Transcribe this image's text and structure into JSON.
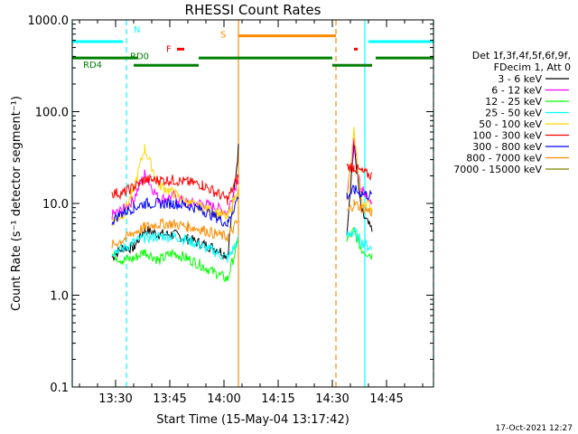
{
  "chart_data": {
    "type": "line",
    "title": "RHESSI Count Rates",
    "xlabel": "Start Time (15-May-04 13:17:42)",
    "ylabel": "Count Rate (s⁻¹ detector segment⁻¹)",
    "y_scale": "log",
    "ylim": [
      0.1,
      1000.0
    ],
    "xlim": [
      "13:18",
      "14:58"
    ],
    "x_ticks": [
      "13:30",
      "13:45",
      "14:00",
      "14:15",
      "14:30",
      "14:45"
    ],
    "y_ticks": [
      "0.1",
      "1.0",
      "10.0",
      "100.0",
      "1000.0"
    ],
    "grid": false,
    "legend_position": "right",
    "legend_header": [
      "Det 1f,3f,4f,5f,6f,9f,",
      "FDecim 1, Att 0"
    ],
    "series": [
      {
        "name": "3 - 6 keV",
        "color": "#000000",
        "x": [
          "13:29",
          "13:32",
          "13:35",
          "13:38",
          "13:42",
          "13:46",
          "13:50",
          "13:54",
          "13:58",
          "14:01",
          "14:04",
          "14:34",
          "14:36",
          "14:38",
          "14:41"
        ],
        "values": [
          2.6,
          3.3,
          3.3,
          5.2,
          4.6,
          4.6,
          4.1,
          3.6,
          3.2,
          2.7,
          40,
          5,
          45,
          8,
          5
        ]
      },
      {
        "name": "6 - 12 keV",
        "color": "#ff00ff",
        "x": [
          "13:29",
          "13:32",
          "13:35",
          "13:38",
          "13:42",
          "13:46",
          "13:50",
          "13:54",
          "13:58",
          "14:01",
          "14:04",
          "14:34",
          "14:36",
          "14:38",
          "14:41"
        ],
        "values": [
          7.5,
          8.5,
          11,
          21,
          11,
          12,
          10,
          10,
          9,
          8,
          20,
          12,
          45,
          14,
          11
        ]
      },
      {
        "name": "12 - 25 keV",
        "color": "#00ff00",
        "x": [
          "13:29",
          "13:32",
          "13:35",
          "13:38",
          "13:42",
          "13:46",
          "13:50",
          "13:54",
          "13:58",
          "14:01",
          "14:04",
          "14:34",
          "14:36",
          "14:38",
          "14:41"
        ],
        "values": [
          2.8,
          2.4,
          2.5,
          3.0,
          2.4,
          2.9,
          2.5,
          2.1,
          1.7,
          1.5,
          4.0,
          4.0,
          5.0,
          3.2,
          2.7
        ]
      },
      {
        "name": "25 - 50 keV",
        "color": "#00ffff",
        "x": [
          "13:29",
          "13:32",
          "13:35",
          "13:38",
          "13:42",
          "13:46",
          "13:50",
          "13:54",
          "13:58",
          "14:01",
          "14:04",
          "14:34",
          "14:36",
          "14:38",
          "14:41"
        ],
        "values": [
          3.0,
          3.2,
          3.8,
          4.2,
          4.4,
          4.4,
          4.0,
          3.4,
          2.9,
          2.5,
          4.0,
          4.5,
          5.0,
          3.8,
          3.2
        ]
      },
      {
        "name": "50 - 100 keV",
        "color": "#ffd700",
        "x": [
          "13:29",
          "13:32",
          "13:35",
          "13:38",
          "13:42",
          "13:46",
          "13:50",
          "13:54",
          "13:58",
          "14:01",
          "14:04",
          "14:34",
          "14:36",
          "14:38",
          "14:41"
        ],
        "values": [
          6.5,
          7.5,
          14,
          40,
          16,
          13,
          10,
          9,
          8,
          7,
          15,
          10,
          60,
          11,
          9
        ]
      },
      {
        "name": "100 - 300 keV",
        "color": "#ff0000",
        "x": [
          "13:29",
          "13:32",
          "13:35",
          "13:38",
          "13:42",
          "13:46",
          "13:50",
          "13:54",
          "13:58",
          "14:01",
          "14:04",
          "14:34",
          "14:36",
          "14:38",
          "14:41"
        ],
        "values": [
          13,
          13,
          15,
          18,
          18,
          18,
          17,
          16,
          13,
          11,
          20,
          25,
          25,
          22,
          20
        ]
      },
      {
        "name": "300 - 800 keV",
        "color": "#0000ff",
        "x": [
          "13:29",
          "13:32",
          "13:35",
          "13:38",
          "13:42",
          "13:46",
          "13:50",
          "13:54",
          "13:58",
          "14:01",
          "14:04",
          "14:34",
          "14:36",
          "14:38",
          "14:41"
        ],
        "values": [
          6.5,
          8,
          9,
          10,
          10,
          10,
          9.5,
          8.5,
          7,
          6,
          12,
          12,
          14,
          13,
          12
        ]
      },
      {
        "name": "800 - 7000 keV",
        "color": "#ff8c00",
        "x": [
          "13:29",
          "13:32",
          "13:35",
          "13:38",
          "13:42",
          "13:46",
          "13:50",
          "13:54",
          "13:58",
          "14:01",
          "14:04",
          "14:34",
          "14:36",
          "14:38",
          "14:41"
        ],
        "values": [
          3.5,
          4.0,
          4.8,
          5.5,
          6.0,
          6.0,
          5.6,
          5.2,
          4.6,
          4.3,
          6.5,
          8,
          10,
          9,
          8
        ]
      },
      {
        "name": "7000 - 15000 keV",
        "color": "#808000",
        "x": [
          "13:29",
          "13:32",
          "13:35",
          "13:38",
          "13:42",
          "13:46",
          "13:50",
          "13:54",
          "13:58",
          "14:01",
          "14:04",
          "14:34",
          "14:36",
          "14:38",
          "14:41"
        ],
        "values": [
          null,
          null,
          null,
          null,
          null,
          null,
          null,
          null,
          null,
          null,
          null,
          null,
          null,
          null,
          null
        ]
      }
    ],
    "vertical_lines": [
      {
        "x": "13:18",
        "color": "#00ffff",
        "style": "solid"
      },
      {
        "x": "13:33",
        "color": "#00ffff",
        "style": "dashed"
      },
      {
        "x": "14:04",
        "color": "#ff8c00",
        "style": "solid"
      },
      {
        "x": "14:31",
        "color": "#ff8c00",
        "style": "dashed"
      },
      {
        "x": "14:39",
        "color": "#00ffff",
        "style": "solid"
      },
      {
        "x": "14:58",
        "color": "#00ffff",
        "style": "dashed"
      }
    ],
    "flag_bars": [
      {
        "label": "N",
        "color": "#00ffff",
        "segments": [
          [
            "13:18",
            "13:32"
          ],
          [
            "14:40",
            "14:58"
          ]
        ],
        "level": 580
      },
      {
        "label": "S",
        "color": "#ff8c00",
        "segments": [
          [
            "14:04",
            "14:31"
          ]
        ],
        "level": 670
      },
      {
        "label": "F",
        "color": "#ff0000",
        "segments": [
          [
            "13:47",
            "13:49"
          ],
          [
            "14:36",
            "14:37"
          ]
        ],
        "level": 480
      },
      {
        "label": "RD0",
        "color": "#008000",
        "segments": [
          [
            "13:18",
            "13:36"
          ],
          [
            "13:53",
            "14:30"
          ],
          [
            "14:42",
            "14:58"
          ]
        ],
        "level": 385
      },
      {
        "label": "RD4",
        "color": "#008000",
        "segments": [
          [
            "13:35",
            "13:53"
          ],
          [
            "14:30",
            "14:41"
          ]
        ],
        "level": 320
      }
    ]
  },
  "footer": {
    "timestamp": "17-Oct-2021 12:27"
  }
}
